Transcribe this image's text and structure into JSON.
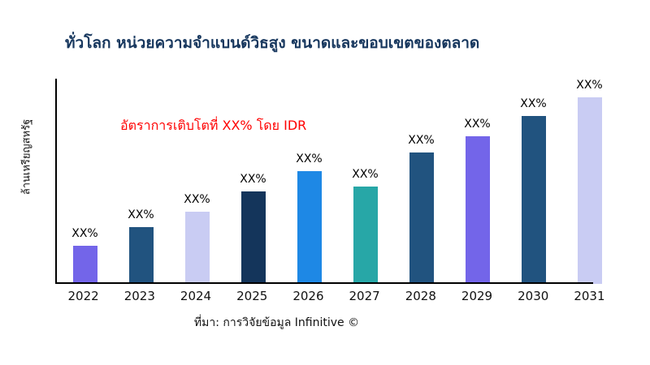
{
  "title": "ทั่วโลก หน่วยความจำแบนด์วิธสูง ขนาดและขอบเขตของตลาด",
  "annotation": "อัตราการเติบโตที่ XX% โดย IDR",
  "source": "ที่มา: การวิจัยข้อมูล Infinitive ©",
  "colors": {
    "title": "#17375E",
    "annotation": "#FF0000",
    "axis": "#000000"
  },
  "chart_data": {
    "type": "bar",
    "title": "ทั่วโลก หน่วยความจำแบนด์วิธสูง ขนาดและขอบเขตของตลาด",
    "xlabel": "",
    "ylabel": "ล้านเหรียญสหรัฐ",
    "categories": [
      "2022",
      "2023",
      "2024",
      "2025",
      "2026",
      "2027",
      "2028",
      "2029",
      "2030",
      "2031"
    ],
    "values": [
      20.4,
      30.4,
      38.7,
      49.6,
      60.4,
      52.2,
      70.4,
      79.1,
      90.0,
      100.0
    ],
    "value_unit": "relative bar height, percent of tallest bar (no numeric axis shown)",
    "bar_labels": [
      "XX%",
      "XX%",
      "XX%",
      "XX%",
      "XX%",
      "XX%",
      "XX%",
      "XX%",
      "XX%",
      "XX%"
    ],
    "bar_colors": [
      "#7365E9",
      "#21537F",
      "#C9CCF3",
      "#14355B",
      "#1E88E5",
      "#27A7A7",
      "#21537F",
      "#7365E9",
      "#21537F",
      "#C9CCF3"
    ],
    "grid": false,
    "legend": false,
    "annotation": "อัตราการเติบโตที่ XX% โดย IDR"
  }
}
